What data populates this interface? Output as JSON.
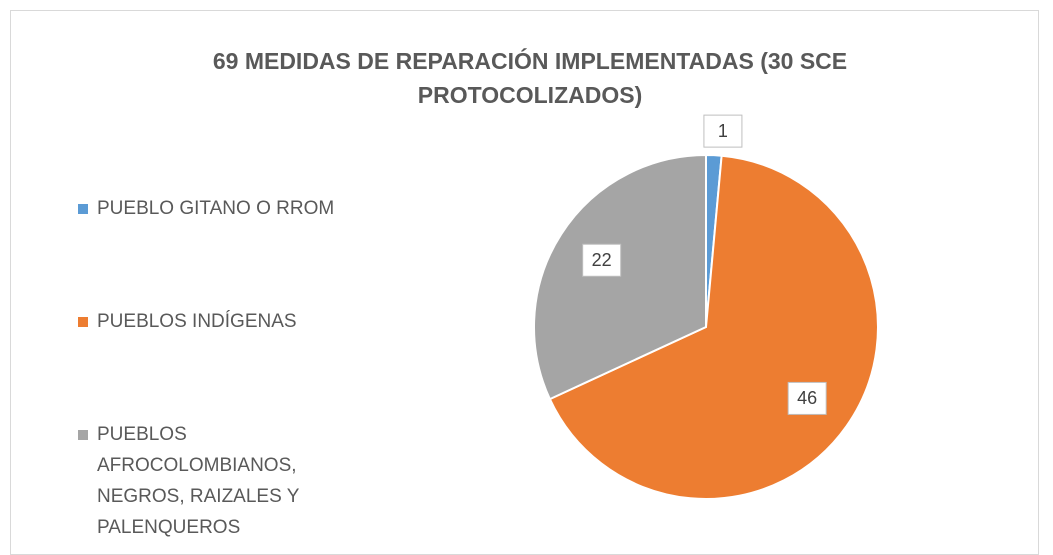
{
  "chart_data": {
    "type": "pie",
    "title": "69 MEDIDAS DE REPARACIÓN IMPLEMENTADAS (30 SCE PROTOCOLIZADOS)",
    "categories": [
      "PUEBLO GITANO O RROM",
      "PUEBLOS INDÍGENAS",
      "PUEBLOS AFROCOLOMBIANOS, NEGROS, RAIZALES Y PALENQUEROS"
    ],
    "values": [
      1,
      46,
      22
    ],
    "colors": [
      "#5b9bd5",
      "#ed7d31",
      "#a5a5a5"
    ],
    "legend": "left"
  }
}
